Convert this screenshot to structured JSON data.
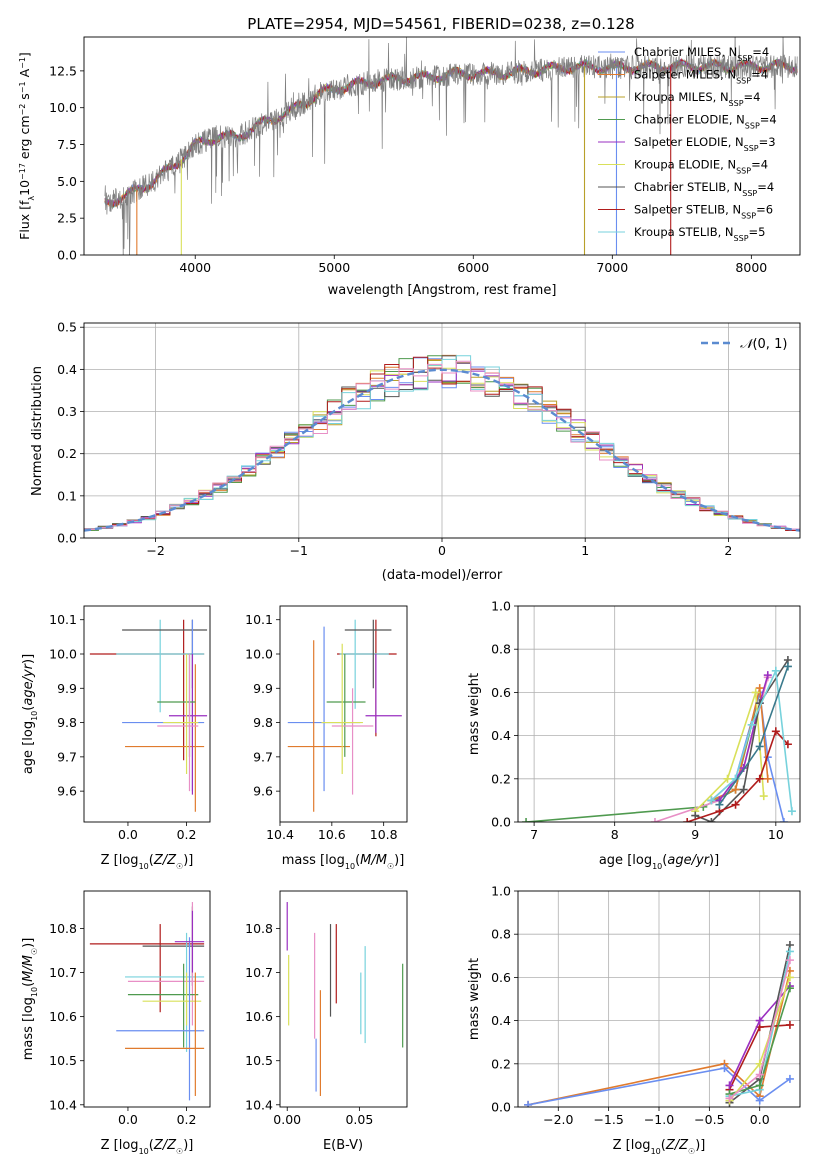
{
  "figure": {
    "title": "PLATE=2954, MJD=54561, FIBERID=0238, z=0.128"
  },
  "colors": {
    "blue": "#6a8ef0",
    "orange": "#e07b2e",
    "olive": "#b8a02a",
    "green": "#4f9a4f",
    "purple": "#9a2fc0",
    "yellow": "#d9e05a",
    "gray": "#555555",
    "red": "#b01c1c",
    "cyan": "#77d2dc",
    "pink": "#e88fc6",
    "teal": "#3a7a8c",
    "spectrum_gray": "#7f7f7f"
  },
  "legend_spectrum": [
    {
      "text": "Chabrier MILES, N",
      "sub": "SSP",
      "tail": "=4",
      "color": "blue"
    },
    {
      "text": "Salpeter MILES, N",
      "sub": "SSP",
      "tail": "=4",
      "color": "orange"
    },
    {
      "text": "Kroupa MILES, N",
      "sub": "SSP",
      "tail": "=4",
      "color": "olive"
    },
    {
      "text": "Chabrier ELODIE, N",
      "sub": "SSP",
      "tail": "=4",
      "color": "green"
    },
    {
      "text": "Salpeter ELODIE, N",
      "sub": "SSP",
      "tail": "=3",
      "color": "purple"
    },
    {
      "text": "Kroupa ELODIE, N",
      "sub": "SSP",
      "tail": "=4",
      "color": "yellow"
    },
    {
      "text": "Chabrier STELIB, N",
      "sub": "SSP",
      "tail": "=4",
      "color": "gray"
    },
    {
      "text": "Salpeter STELIB, N",
      "sub": "SSP",
      "tail": "=6",
      "color": "red"
    },
    {
      "text": "Kroupa STELIB, N",
      "sub": "SSP",
      "tail": "=5",
      "color": "cyan"
    }
  ],
  "chart_data": [
    {
      "type": "line",
      "panel": "spectrum",
      "xlabel": "wavelength [Angstrom, rest frame]",
      "ylabel": "Flux [fλ10⁻¹⁷ erg cm⁻² s⁻¹ A⁻¹]",
      "xlim": [
        3200,
        8350
      ],
      "ylim": [
        0,
        14.8
      ],
      "xticks": [
        4000,
        5000,
        6000,
        7000,
        8000
      ],
      "yticks": [
        0.0,
        2.5,
        5.0,
        7.5,
        10.0,
        12.5
      ],
      "data_trend": {
        "x": [
          3350,
          3500,
          3700,
          3900,
          4000,
          4150,
          4300,
          4500,
          4700,
          4900,
          5100,
          5300,
          5500,
          5700,
          5900,
          6100,
          6300,
          6500,
          6800,
          7000,
          7400
        ],
        "y": [
          3.5,
          4.0,
          5.0,
          6.5,
          7.5,
          8.0,
          8.0,
          9.0,
          9.8,
          11.0,
          11.5,
          11.8,
          12.0,
          12.1,
          12.3,
          12.3,
          12.4,
          12.6,
          12.8,
          12.7,
          12.8
        ]
      },
      "model_cutoffs": [
        {
          "x": 3580,
          "color": "orange"
        },
        {
          "x": 3900,
          "color": "yellow"
        },
        {
          "x": 6800,
          "color": "olive"
        },
        {
          "x": 7030,
          "color": "blue"
        },
        {
          "x": 7420,
          "color": "red"
        }
      ]
    },
    {
      "type": "histogram",
      "panel": "residuals",
      "xlabel": "(data-model)/error",
      "ylabel": "Normed distribution",
      "xlim": [
        -2.5,
        2.5
      ],
      "ylim": [
        0,
        0.51
      ],
      "xticks": [
        -2,
        -1,
        0,
        1,
        2
      ],
      "yticks": [
        0.0,
        0.1,
        0.2,
        0.3,
        0.4,
        0.5
      ],
      "bin_width": 0.1,
      "reference_label": "N(0,1)",
      "series_colors": [
        "blue",
        "orange",
        "olive",
        "green",
        "purple",
        "yellow",
        "gray",
        "red",
        "cyan",
        "pink"
      ]
    },
    {
      "type": "errorbar",
      "panel": "age-vs-Z",
      "xlabel": "Z [log10(Z/Z☉)]",
      "ylabel": "age [log10(age/yr)]",
      "xlim": [
        -0.15,
        0.28
      ],
      "ylim": [
        9.51,
        10.14
      ],
      "xticks": [
        0.0,
        0.2
      ],
      "yticks": [
        9.6,
        9.7,
        9.8,
        9.9,
        10.0,
        10.1
      ],
      "points": [
        {
          "x": 0.19,
          "y": 10.0,
          "xl": -0.13,
          "xh": 0.26,
          "yl": 9.69,
          "yh": 10.1,
          "color": "red"
        },
        {
          "x": 0.11,
          "y": 10.0,
          "xl": -0.04,
          "xh": 0.26,
          "yl": 9.83,
          "yh": 10.1,
          "color": "cyan"
        },
        {
          "x": 0.22,
          "y": 10.07,
          "xl": -0.02,
          "xh": 0.27,
          "yl": 9.9,
          "yh": 10.1,
          "color": "gray"
        },
        {
          "x": 0.22,
          "y": 9.8,
          "xl": -0.02,
          "xh": 0.26,
          "yl": 9.6,
          "yh": 10.1,
          "color": "blue"
        },
        {
          "x": 0.23,
          "y": 9.73,
          "xl": -0.01,
          "xh": 0.26,
          "yl": 9.54,
          "yh": 9.97,
          "color": "orange"
        },
        {
          "x": 0.22,
          "y": 9.82,
          "xl": 0.14,
          "xh": 0.27,
          "yl": 9.59,
          "yh": 10.0,
          "color": "purple"
        },
        {
          "x": 0.21,
          "y": 9.86,
          "xl": 0.1,
          "xh": 0.23,
          "yl": 9.7,
          "yh": 10.0,
          "color": "green"
        },
        {
          "x": 0.21,
          "y": 9.79,
          "xl": 0.1,
          "xh": 0.24,
          "yl": 9.6,
          "yh": 10.0,
          "color": "pink"
        },
        {
          "x": 0.2,
          "y": 9.8,
          "xl": 0.12,
          "xh": 0.24,
          "yl": 9.65,
          "yh": 10.0,
          "color": "yellow"
        }
      ]
    },
    {
      "type": "errorbar",
      "panel": "age-vs-mass",
      "xlabel": "mass [log10(M/M☉)]",
      "xlim": [
        10.4,
        10.89
      ],
      "ylim": [
        9.51,
        10.14
      ],
      "xticks": [
        10.4,
        10.6,
        10.8
      ],
      "yticks": [
        9.6,
        9.7,
        9.8,
        9.9,
        10.0,
        10.1
      ],
      "points": [
        {
          "x": 10.77,
          "y": 10.0,
          "xl": 10.62,
          "xh": 10.85,
          "yl": 9.76,
          "yh": 10.1,
          "color": "red"
        },
        {
          "x": 10.69,
          "y": 10.0,
          "xl": 10.63,
          "xh": 10.82,
          "yl": 9.84,
          "yh": 10.1,
          "color": "cyan"
        },
        {
          "x": 10.76,
          "y": 10.07,
          "xl": 10.65,
          "xh": 10.83,
          "yl": 9.9,
          "yh": 10.1,
          "color": "gray"
        },
        {
          "x": 10.57,
          "y": 9.8,
          "xl": 10.43,
          "xh": 10.71,
          "yl": 9.6,
          "yh": 10.08,
          "color": "blue"
        },
        {
          "x": 10.53,
          "y": 9.73,
          "xl": 10.43,
          "xh": 10.67,
          "yl": 9.54,
          "yh": 10.04,
          "color": "orange"
        },
        {
          "x": 10.77,
          "y": 9.82,
          "xl": 10.73,
          "xh": 10.87,
          "yl": 9.77,
          "yh": 10.0,
          "color": "purple"
        },
        {
          "x": 10.65,
          "y": 9.86,
          "xl": 10.58,
          "xh": 10.73,
          "yl": 9.7,
          "yh": 10.0,
          "color": "green"
        },
        {
          "x": 10.68,
          "y": 9.79,
          "xl": 10.6,
          "xh": 10.76,
          "yl": 9.59,
          "yh": 9.9,
          "color": "pink"
        },
        {
          "x": 10.64,
          "y": 9.8,
          "xl": 10.56,
          "xh": 10.72,
          "yl": 9.65,
          "yh": 10.03,
          "color": "yellow"
        }
      ]
    },
    {
      "type": "line",
      "panel": "massweight-vs-age",
      "xlabel": "age [log10(age/yr)]",
      "ylabel": "mass weight",
      "xlim": [
        6.8,
        10.3
      ],
      "ylim": [
        0,
        1.0
      ],
      "xticks": [
        7,
        8,
        9,
        10
      ],
      "yticks": [
        0.0,
        0.2,
        0.4,
        0.6,
        0.8,
        1.0
      ],
      "series": [
        {
          "color": "green",
          "x": [
            6.9,
            9.1,
            9.5,
            9.8
          ],
          "y": [
            0.0,
            0.07,
            0.15,
            0.6
          ]
        },
        {
          "color": "blue",
          "x": [
            9.2,
            9.5,
            9.8,
            9.9,
            10.1
          ],
          "y": [
            0.1,
            0.2,
            0.6,
            0.3,
            0.0
          ]
        },
        {
          "color": "orange",
          "x": [
            9.2,
            9.5,
            9.8,
            9.9
          ],
          "y": [
            0.1,
            0.15,
            0.62,
            0.2
          ]
        },
        {
          "color": "pink",
          "x": [
            8.5,
            9.3,
            9.6,
            9.9
          ],
          "y": [
            0.0,
            0.1,
            0.25,
            0.67
          ]
        },
        {
          "color": "purple",
          "x": [
            9.3,
            9.6,
            9.8,
            9.9
          ],
          "y": [
            0.1,
            0.25,
            0.55,
            0.68
          ]
        },
        {
          "color": "yellow",
          "x": [
            9.0,
            9.4,
            9.75,
            9.85
          ],
          "y": [
            0.05,
            0.2,
            0.6,
            0.12
          ]
        },
        {
          "color": "gray",
          "x": [
            9.0,
            9.2,
            9.6,
            9.8,
            10.15
          ],
          "y": [
            0.03,
            0.0,
            0.15,
            0.55,
            0.75
          ]
        },
        {
          "color": "red",
          "x": [
            8.9,
            9.3,
            9.5,
            9.8,
            10.0,
            10.15
          ],
          "y": [
            0.0,
            0.05,
            0.08,
            0.2,
            0.42,
            0.36
          ]
        },
        {
          "color": "cyan",
          "x": [
            9.2,
            9.5,
            9.7,
            10.0,
            10.2
          ],
          "y": [
            0.1,
            0.2,
            0.45,
            0.7,
            0.05
          ]
        },
        {
          "color": "teal",
          "x": [
            9.3,
            9.8,
            10.15
          ],
          "y": [
            0.08,
            0.35,
            0.72
          ]
        }
      ]
    },
    {
      "type": "errorbar",
      "panel": "mass-vs-Z",
      "xlabel": "Z [log10(Z/Z☉)]",
      "ylabel": "mass [log10(M/M☉)]",
      "xlim": [
        -0.15,
        0.28
      ],
      "ylim": [
        10.395,
        10.885
      ],
      "xticks": [
        0.0,
        0.2
      ],
      "yticks": [
        10.4,
        10.5,
        10.6,
        10.7,
        10.8
      ],
      "points": [
        {
          "x": 0.11,
          "y": 10.765,
          "xl": -0.13,
          "xh": 0.26,
          "yl": 10.61,
          "yh": 10.81,
          "color": "red"
        },
        {
          "x": 0.22,
          "y": 10.76,
          "xl": 0.05,
          "xh": 0.26,
          "yl": 10.67,
          "yh": 10.85,
          "color": "gray"
        },
        {
          "x": 0.2,
          "y": 10.69,
          "xl": -0.01,
          "xh": 0.26,
          "yl": 10.52,
          "yh": 10.79,
          "color": "cyan"
        },
        {
          "x": 0.22,
          "y": 10.68,
          "xl": 0.0,
          "xh": 0.26,
          "yl": 10.58,
          "yh": 10.86,
          "color": "pink"
        },
        {
          "x": 0.19,
          "y": 10.65,
          "xl": 0.0,
          "xh": 0.24,
          "yl": 10.53,
          "yh": 10.72,
          "color": "green"
        },
        {
          "x": 0.2,
          "y": 10.635,
          "xl": 0.05,
          "xh": 0.25,
          "yl": 10.58,
          "yh": 10.7,
          "color": "yellow"
        },
        {
          "x": 0.21,
          "y": 10.568,
          "xl": -0.04,
          "xh": 0.26,
          "yl": 10.41,
          "yh": 10.78,
          "color": "blue"
        },
        {
          "x": 0.23,
          "y": 10.528,
          "xl": -0.01,
          "xh": 0.26,
          "yl": 10.42,
          "yh": 10.7,
          "color": "orange"
        },
        {
          "x": 0.22,
          "y": 10.77,
          "xl": 0.16,
          "xh": 0.26,
          "yl": 10.7,
          "yh": 10.84,
          "color": "purple"
        }
      ]
    },
    {
      "type": "errorbar",
      "panel": "mass-vs-EBV",
      "xlabel": "E(B-V)",
      "xlim": [
        -0.005,
        0.083
      ],
      "ylim": [
        10.395,
        10.885
      ],
      "xticks": [
        0.0,
        0.05
      ],
      "yticks": [
        10.4,
        10.5,
        10.6,
        10.7,
        10.8
      ],
      "points": [
        {
          "x": 0.0,
          "yl": 10.75,
          "yh": 10.86,
          "color": "purple"
        },
        {
          "x": 0.001,
          "yl": 10.58,
          "yh": 10.74,
          "color": "yellow"
        },
        {
          "x": 0.019,
          "yl": 10.55,
          "yh": 10.79,
          "color": "pink"
        },
        {
          "x": 0.02,
          "yl": 10.43,
          "yh": 10.55,
          "color": "blue"
        },
        {
          "x": 0.023,
          "yl": 10.42,
          "yh": 10.66,
          "color": "orange"
        },
        {
          "x": 0.03,
          "yl": 10.6,
          "yh": 10.81,
          "color": "gray"
        },
        {
          "x": 0.034,
          "yl": 10.63,
          "yh": 10.81,
          "color": "red"
        },
        {
          "x": 0.051,
          "yl": 10.56,
          "yh": 10.7,
          "color": "cyan"
        },
        {
          "x": 0.054,
          "yl": 10.54,
          "yh": 10.76,
          "color": "cyan"
        },
        {
          "x": 0.08,
          "yl": 10.53,
          "yh": 10.72,
          "color": "green"
        }
      ]
    },
    {
      "type": "line",
      "panel": "massweight-vs-Z",
      "xlabel": "Z [log10(Z/Z☉)]",
      "ylabel": "mass weight",
      "xlim": [
        -2.4,
        0.4
      ],
      "ylim": [
        0,
        1.0
      ],
      "xticks": [
        -2.0,
        -1.5,
        -1.0,
        -0.5,
        0.0
      ],
      "yticks": [
        0.0,
        0.2,
        0.4,
        0.6,
        0.8,
        1.0
      ],
      "series": [
        {
          "color": "orange",
          "x": [
            -2.3,
            -0.35,
            0.0,
            0.3
          ],
          "y": [
            0.01,
            0.2,
            0.05,
            0.63
          ]
        },
        {
          "color": "blue",
          "x": [
            -2.3,
            -0.35,
            0.0,
            0.3
          ],
          "y": [
            0.01,
            0.18,
            0.03,
            0.13
          ]
        },
        {
          "color": "red",
          "x": [
            -0.3,
            0.0,
            0.3
          ],
          "y": [
            0.08,
            0.37,
            0.38
          ]
        },
        {
          "color": "purple",
          "x": [
            -0.3,
            0.0,
            0.3
          ],
          "y": [
            0.1,
            0.4,
            0.56
          ]
        },
        {
          "color": "gray",
          "x": [
            -0.3,
            0.0,
            0.3
          ],
          "y": [
            0.02,
            0.13,
            0.75
          ]
        },
        {
          "color": "cyan",
          "x": [
            -0.3,
            0.0,
            0.3
          ],
          "y": [
            0.05,
            0.08,
            0.72
          ]
        },
        {
          "color": "green",
          "x": [
            -0.3,
            0.0,
            0.3
          ],
          "y": [
            0.06,
            0.1,
            0.55
          ]
        },
        {
          "color": "yellow",
          "x": [
            -0.3,
            0.0,
            0.3
          ],
          "y": [
            0.03,
            0.2,
            0.6
          ]
        },
        {
          "color": "pink",
          "x": [
            -0.3,
            0.0,
            0.3
          ],
          "y": [
            0.04,
            0.15,
            0.68
          ]
        }
      ]
    }
  ]
}
